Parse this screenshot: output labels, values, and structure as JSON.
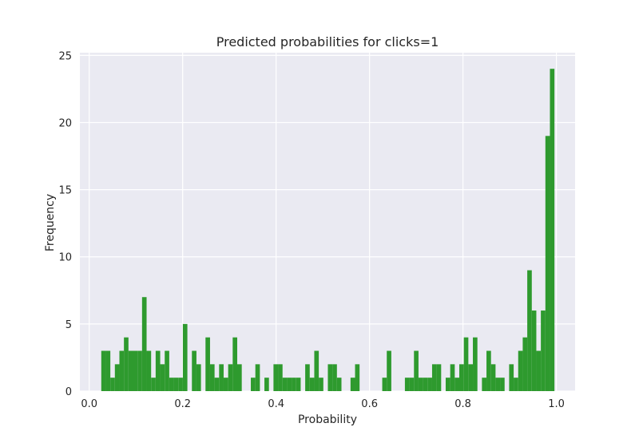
{
  "chart_data": {
    "type": "bar",
    "title": "Predicted probabilities for clicks=1",
    "xlabel": "Probability",
    "ylabel": "Frequency",
    "xlim": [
      -0.02,
      1.04
    ],
    "ylim": [
      0,
      25.2
    ],
    "xticks": [
      0.0,
      0.2,
      0.4,
      0.6,
      0.8,
      1.0
    ],
    "xtick_labels": [
      "0.0",
      "0.2",
      "0.4",
      "0.6",
      "0.8",
      "1.0"
    ],
    "yticks": [
      0,
      5,
      10,
      15,
      20,
      25
    ],
    "ytick_labels": [
      "0",
      "5",
      "10",
      "15",
      "20",
      "25"
    ],
    "grid": true,
    "bin_start": 0.0258,
    "bin_width": 0.0097,
    "counts": [
      3,
      3,
      1,
      2,
      3,
      4,
      3,
      3,
      3,
      7,
      3,
      1,
      3,
      2,
      3,
      1,
      1,
      1,
      5,
      0,
      3,
      2,
      0,
      4,
      2,
      1,
      2,
      1,
      2,
      4,
      2,
      0,
      0,
      1,
      2,
      0,
      1,
      0,
      2,
      2,
      1,
      1,
      1,
      1,
      0,
      2,
      1,
      3,
      1,
      0,
      2,
      2,
      1,
      0,
      0,
      1,
      2,
      0,
      0,
      0,
      0,
      0,
      1,
      3,
      0,
      0,
      0,
      1,
      1,
      3,
      1,
      1,
      1,
      2,
      2,
      0,
      1,
      2,
      1,
      2,
      4,
      2,
      4,
      0,
      1,
      3,
      2,
      1,
      1,
      0,
      2,
      1,
      3,
      4,
      9,
      6,
      3,
      6,
      19,
      24
    ],
    "colors": {
      "bar": "#2e9a2e",
      "plot_bg": "#eaeaf2",
      "grid": "#ffffff"
    }
  }
}
